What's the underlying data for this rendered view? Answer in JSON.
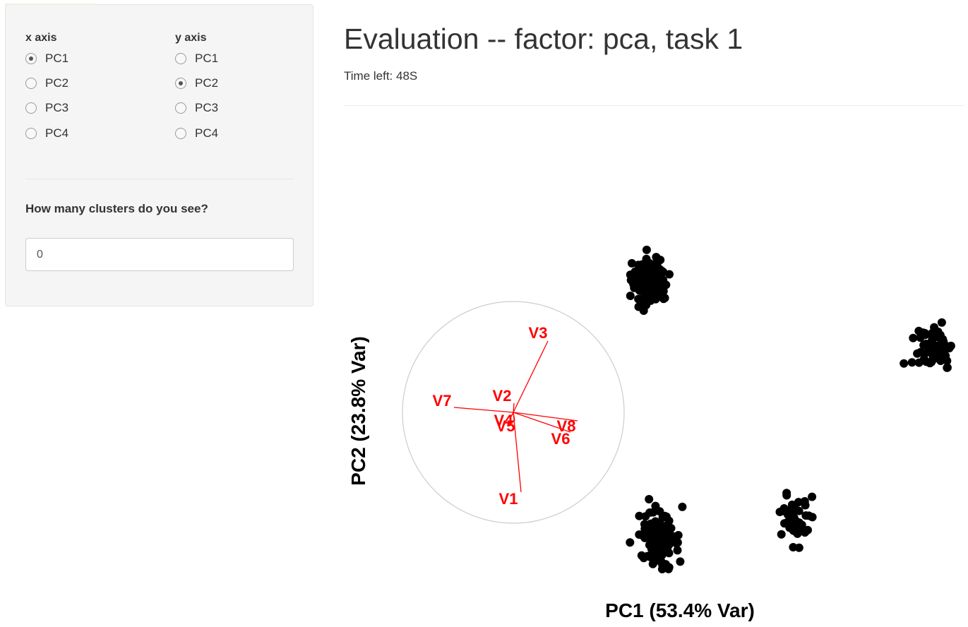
{
  "sidebar": {
    "x_axis": {
      "label": "x axis",
      "options": [
        "PC1",
        "PC2",
        "PC3",
        "PC4"
      ],
      "selected": "PC1"
    },
    "y_axis": {
      "label": "y axis",
      "options": [
        "PC1",
        "PC2",
        "PC3",
        "PC4"
      ],
      "selected": "PC2"
    },
    "cluster_question": "How many clusters do you see?",
    "cluster_input_value": "0"
  },
  "main": {
    "title": "Evaluation -- factor: pca, task 1",
    "time_left": "Time left: 48S"
  },
  "chart_data": {
    "type": "scatter",
    "xlabel": "PC1 (53.4% Var)",
    "ylabel": "PC2 (23.8% Var)",
    "point_color": "#000000",
    "loading_color": "#ff0000",
    "circle_color": "#cccccc",
    "axes_visible": false,
    "grid": false,
    "clusters": [
      {
        "center": [
          920,
          398
        ],
        "spread": [
          22,
          28
        ],
        "n": 110
      },
      {
        "center": [
          1322,
          494
        ],
        "spread": [
          22,
          30
        ],
        "n": 70
      },
      {
        "center": [
          1124,
          737
        ],
        "spread": [
          16,
          28
        ],
        "n": 45
      },
      {
        "center": [
          934,
          764
        ],
        "spread": [
          24,
          30
        ],
        "n": 110
      }
    ],
    "loadings": [
      {
        "name": "V1",
        "end": [
          738,
          697
        ],
        "label": [
          720,
          708
        ]
      },
      {
        "name": "V2",
        "end": [
          728,
          571
        ],
        "label": [
          711,
          562
        ]
      },
      {
        "name": "V3",
        "end": [
          776,
          483
        ],
        "label": [
          762,
          473
        ]
      },
      {
        "name": "V4",
        "end": [
          724,
          590
        ],
        "label": [
          713,
          597
        ]
      },
      {
        "name": "V5",
        "end": [
          729,
          596
        ],
        "label": [
          716,
          605
        ]
      },
      {
        "name": "V6",
        "end": [
          808,
          612
        ],
        "label": [
          794,
          623
        ]
      },
      {
        "name": "V7",
        "end": [
          643,
          577
        ],
        "label": [
          626,
          569
        ]
      },
      {
        "name": "V8",
        "end": [
          818,
          596
        ],
        "label": [
          802,
          605
        ]
      }
    ]
  }
}
